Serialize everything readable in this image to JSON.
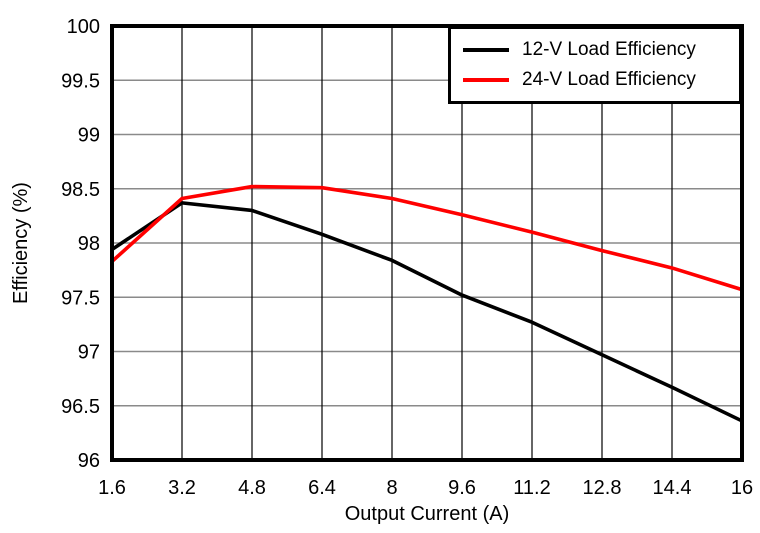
{
  "chart_data": {
    "type": "line",
    "title": "",
    "xlabel": "Output Current (A)",
    "ylabel": "Efficiency (%)",
    "xlim": [
      1.6,
      16
    ],
    "ylim": [
      96,
      100
    ],
    "grid": true,
    "legend_position": "top-right",
    "x": [
      1.6,
      3.2,
      4.8,
      6.4,
      8,
      9.6,
      11.2,
      12.8,
      14.4,
      16
    ],
    "x_tick_labels": [
      "1.6",
      "3.2",
      "4.8",
      "6.4",
      "8",
      "9.6",
      "11.2",
      "12.8",
      "14.4",
      "16"
    ],
    "y_ticks": [
      96,
      96.5,
      97,
      97.5,
      98,
      98.5,
      99,
      99.5,
      100
    ],
    "y_tick_labels": [
      "96",
      "96.5",
      "97",
      "97.5",
      "98",
      "98.5",
      "99",
      "99.5",
      "100"
    ],
    "series": [
      {
        "name": "12-V Load Efficiency",
        "color": "#000000",
        "values": [
          97.94,
          98.37,
          98.3,
          98.08,
          97.84,
          97.52,
          97.27,
          96.97,
          96.67,
          96.36
        ]
      },
      {
        "name": "24-V Load Efficiency",
        "color": "#ff0000",
        "values": [
          97.83,
          98.41,
          98.52,
          98.51,
          98.41,
          98.26,
          98.1,
          97.93,
          97.77,
          97.57
        ]
      }
    ],
    "colors": {
      "frame": "#000000",
      "h_gridline": "#8a8a8a",
      "v_gridline": "#000000",
      "background": "#ffffff"
    }
  }
}
